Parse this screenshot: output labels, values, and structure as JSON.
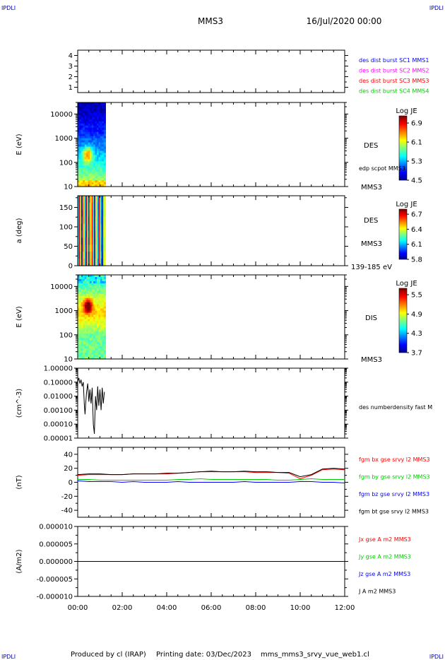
{
  "corner_labels": {
    "tl": "IPDLI",
    "tr": "IPDLI",
    "bl": "IPDLI",
    "br": "IPDLI"
  },
  "header": {
    "title": "MMS3",
    "date": "16/Jul/2020 00:00"
  },
  "footer": {
    "produced_by": "Produced by cl (IRAP)",
    "printing_date": "Printing date: 03/Dec/2023",
    "filename": "mms_mms3_srvy_vue_web1.cl"
  },
  "chart_data": [
    {
      "type": "line",
      "panel": "spacecraft-availability",
      "ylim": [
        0.5,
        4.5
      ],
      "ytick_labels": [
        "1",
        "2",
        "3",
        "4"
      ],
      "legend": [
        {
          "label": "des dist burst SC1 MMS1",
          "color": "#0000ff"
        },
        {
          "label": "des dist burst SC2 MMS2",
          "color": "#ff00ff"
        },
        {
          "label": "des dist burst SC3 MMS3",
          "color": "#ff0000"
        },
        {
          "label": "des dist burst SC4 MMS4",
          "color": "#00cc00"
        }
      ]
    },
    {
      "type": "heatmap",
      "panel": "des-energy-spectrogram",
      "ylabel": "E (eV)",
      "ylim": [
        10,
        30000
      ],
      "y_scale": "log",
      "ytick_labels": [
        "10",
        "100",
        "1000",
        "10000"
      ],
      "data_x_range_hours": [
        0.0,
        1.25
      ],
      "labels": [
        "DES",
        "edp scpot MMS3",
        "MMS3"
      ],
      "colorbar": {
        "title": "Log JE",
        "range": [
          4.5,
          7.2
        ],
        "tick_labels": [
          "4.5",
          "5.3",
          "6.1",
          "6.9"
        ]
      }
    },
    {
      "type": "heatmap",
      "panel": "des-pitch-angle",
      "ylabel": "a (deg)",
      "ylim": [
        0,
        180
      ],
      "ytick_labels": [
        "0",
        "50",
        "100",
        "150"
      ],
      "data_x_range_hours": [
        0.0,
        1.25
      ],
      "labels": [
        "DES",
        "MMS3",
        "139-185 eV"
      ],
      "colorbar": {
        "title": "Log JE",
        "range": [
          5.8,
          6.8
        ],
        "tick_labels": [
          "5.8",
          "6.1",
          "6.4",
          "6.7"
        ]
      }
    },
    {
      "type": "heatmap",
      "panel": "dis-energy-spectrogram",
      "ylabel": "E (eV)",
      "ylim": [
        10,
        30000
      ],
      "y_scale": "log",
      "ytick_labels": [
        "10",
        "100",
        "1000",
        "10000"
      ],
      "data_x_range_hours": [
        0.0,
        1.25
      ],
      "labels": [
        "DIS",
        "MMS3"
      ],
      "colorbar": {
        "title": "Log JE",
        "range": [
          3.7,
          5.7
        ],
        "tick_labels": [
          "3.7",
          "4.3",
          "4.9",
          "5.5"
        ]
      }
    },
    {
      "type": "line",
      "panel": "electron-density",
      "ylabel": "(cm^-3)",
      "ylim": [
        1e-05,
        1.0
      ],
      "y_scale": "log",
      "ytick_labels": [
        "0.00001",
        "0.00010",
        "0.00100",
        "0.01000",
        "0.10000",
        "1.00000"
      ],
      "series": [
        {
          "name": "des numberdensity fast M",
          "color": "#000000",
          "x": [
            0.0,
            0.05,
            0.1,
            0.15,
            0.2,
            0.25,
            0.3,
            0.33,
            0.36,
            0.4,
            0.45,
            0.5,
            0.55,
            0.6,
            0.65,
            0.7,
            0.75,
            0.8,
            0.85,
            0.9,
            0.95,
            1.0,
            1.05,
            1.1,
            1.15,
            1.2
          ],
          "y": [
            0.1,
            0.2,
            0.08,
            0.15,
            0.05,
            0.1,
            0.002,
            0.0005,
            0.003,
            0.02,
            0.08,
            0.004,
            0.03,
            0.003,
            0.04,
            0.0001,
            2e-05,
            0.01,
            0.001,
            0.05,
            0.002,
            0.03,
            0.001,
            0.04,
            0.003,
            0.02
          ]
        }
      ]
    },
    {
      "type": "line",
      "panel": "magnetic-field",
      "ylabel": "(nT)",
      "ylim": [
        -50,
        50
      ],
      "ytick_labels": [
        "-40",
        "-20",
        "0",
        "20",
        "40"
      ],
      "x": [
        0,
        0.5,
        1,
        1.5,
        2,
        2.5,
        3,
        3.5,
        4,
        4.5,
        5,
        5.5,
        6,
        6.5,
        7,
        7.5,
        8,
        8.5,
        9,
        9.5,
        10,
        10.5,
        11,
        11.5,
        12
      ],
      "series": [
        {
          "name": "fgm bx gse srvy l2 MMS3",
          "color": "#ff0000",
          "values": [
            10,
            11,
            11,
            11,
            11,
            12,
            12,
            12,
            12,
            13,
            14,
            15,
            15,
            15,
            15,
            15,
            14,
            14,
            14,
            13,
            5,
            10,
            18,
            19,
            18
          ]
        },
        {
          "name": "fgm by gse srvy l2 MMS3",
          "color": "#00cc00",
          "values": [
            4,
            4,
            3,
            3,
            3,
            3,
            3,
            3,
            3,
            4,
            4,
            5,
            4,
            4,
            4,
            4,
            4,
            4,
            3,
            3,
            4,
            5,
            4,
            4,
            4
          ]
        },
        {
          "name": "fgm bz gse srvy l2 MMS3",
          "color": "#0000ff",
          "values": [
            2,
            1,
            1,
            1,
            0,
            1,
            0,
            0,
            0,
            1,
            0,
            0,
            0,
            0,
            0,
            1,
            0,
            0,
            0,
            0,
            1,
            1,
            0,
            0,
            -1
          ]
        },
        {
          "name": "fgm bt gse srvy l2 MMS3",
          "color": "#000000",
          "values": [
            11,
            12,
            12,
            11,
            11,
            12,
            12,
            12,
            13,
            13,
            14,
            15,
            16,
            15,
            15,
            16,
            15,
            15,
            14,
            14,
            8,
            11,
            19,
            20,
            19
          ]
        }
      ]
    },
    {
      "type": "line",
      "panel": "current-density",
      "ylabel": "(A/m2)",
      "ylim": [
        -1e-05,
        1e-05
      ],
      "ytick_labels": [
        "-0.000010",
        "-0.000005",
        "0.000000",
        "0.000005",
        "0.000010"
      ],
      "series": [
        {
          "name": "Jx gse A m2 MMS3",
          "color": "#ff0000",
          "values": [
            0
          ]
        },
        {
          "name": "Jy gse A m2 MMS3",
          "color": "#00cc00",
          "values": [
            0
          ]
        },
        {
          "name": "Jz gse A m2 MMS3",
          "color": "#0000ff",
          "values": [
            0
          ]
        },
        {
          "name": "J A m2 MMS3",
          "color": "#000000",
          "values": [
            0
          ]
        }
      ]
    }
  ],
  "x_axis": {
    "xlim_hours": [
      0,
      12
    ],
    "tick_labels": [
      "00:00",
      "02:00",
      "04:00",
      "06:00",
      "08:00",
      "10:00",
      "12:00"
    ]
  }
}
